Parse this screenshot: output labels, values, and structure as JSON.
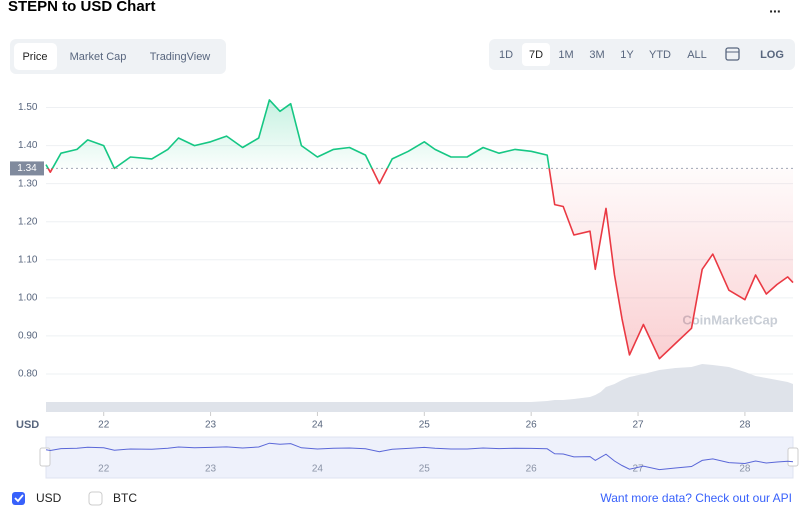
{
  "ui": {
    "title": "STEPN to USD Chart",
    "menu": "...",
    "tabs": [
      "Price",
      "Market Cap",
      "TradingView"
    ],
    "ranges": [
      "1D",
      "7D",
      "1M",
      "3M",
      "1Y",
      "YTD",
      "ALL"
    ],
    "log": "LOG",
    "watermark": "CoinMarketCap",
    "toggles": [
      "USD",
      "BTC"
    ],
    "api_link": "Want more data? Check out our API"
  },
  "chart_data": {
    "type": "line",
    "axis_label": "USD",
    "baseline": 1.34,
    "x": [
      21.46,
      21.5,
      21.6,
      21.75,
      21.85,
      22.0,
      22.1,
      22.25,
      22.45,
      22.6,
      22.7,
      22.85,
      23.0,
      23.15,
      23.3,
      23.45,
      23.55,
      23.65,
      23.75,
      23.85,
      24.0,
      24.15,
      24.3,
      24.45,
      24.58,
      24.7,
      24.85,
      25.0,
      25.1,
      25.25,
      25.4,
      25.55,
      25.7,
      25.85,
      26.0,
      26.15,
      26.22,
      26.3,
      26.4,
      26.55,
      26.6,
      26.65,
      26.7,
      26.78,
      26.85,
      26.92,
      27.05,
      27.2,
      27.35,
      27.5,
      27.6,
      27.7,
      27.85,
      28.0,
      28.1,
      28.2,
      28.3,
      28.4,
      28.45
    ],
    "series": [
      {
        "name": "USD",
        "color_up": "#16c784",
        "color_down": "#ea3943",
        "values": [
          1.35,
          1.33,
          1.38,
          1.39,
          1.415,
          1.4,
          1.34,
          1.37,
          1.365,
          1.39,
          1.42,
          1.4,
          1.41,
          1.425,
          1.395,
          1.42,
          1.52,
          1.49,
          1.51,
          1.4,
          1.37,
          1.39,
          1.395,
          1.375,
          1.3,
          1.365,
          1.385,
          1.41,
          1.39,
          1.37,
          1.37,
          1.395,
          1.38,
          1.39,
          1.385,
          1.375,
          1.245,
          1.24,
          1.165,
          1.175,
          1.075,
          1.155,
          1.235,
          1.06,
          0.945,
          0.85,
          0.93,
          0.84,
          0.88,
          0.92,
          1.075,
          1.115,
          1.02,
          0.995,
          1.06,
          1.01,
          1.035,
          1.055,
          1.04
        ]
      }
    ],
    "volume": [
      10,
      10,
      10,
      10,
      10,
      10,
      10,
      10,
      10,
      10,
      10,
      10,
      10,
      10,
      10,
      10,
      10,
      10,
      10,
      10,
      10,
      10,
      10,
      10,
      10,
      10,
      10,
      10,
      10,
      10,
      10,
      10,
      10,
      10,
      10,
      11,
      12,
      12,
      13,
      15,
      17,
      20,
      25,
      28,
      32,
      35,
      38,
      42,
      44,
      45,
      48,
      47,
      45,
      40,
      36,
      34,
      32,
      30,
      28
    ],
    "xlim": [
      21.46,
      28.45
    ],
    "xticks": [
      22,
      23,
      24,
      25,
      26,
      27,
      28
    ],
    "ylim": [
      0.7,
      1.55
    ],
    "yticks": [
      {
        "value": 0.8,
        "label": "0.80"
      },
      {
        "value": 0.9,
        "label": "0.90"
      },
      {
        "value": 1.0,
        "label": "1.00"
      },
      {
        "value": 1.1,
        "label": "1.10"
      },
      {
        "value": 1.2,
        "label": "1.20"
      },
      {
        "value": 1.3,
        "label": "1.30"
      },
      {
        "value": 1.4,
        "label": "1.40"
      },
      {
        "value": 1.5,
        "label": "1.50"
      }
    ],
    "grid": true
  }
}
